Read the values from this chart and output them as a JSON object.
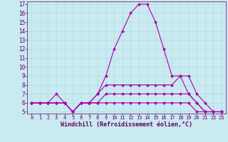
{
  "title": "",
  "xlabel": "Windchill (Refroidissement éolien,°C)",
  "ylabel": "",
  "bg_color": "#c8eaf0",
  "line_color": "#aa00aa",
  "grid_color": "#b0d8df",
  "text_color": "#660066",
  "xlim": [
    -0.5,
    23.5
  ],
  "ylim": [
    4.8,
    17.3
  ],
  "xticks": [
    0,
    1,
    2,
    3,
    4,
    5,
    6,
    7,
    8,
    9,
    10,
    11,
    12,
    13,
    14,
    15,
    16,
    17,
    18,
    19,
    20,
    21,
    22,
    23
  ],
  "yticks": [
    5,
    6,
    7,
    8,
    9,
    10,
    11,
    12,
    13,
    14,
    15,
    16,
    17
  ],
  "series": [
    {
      "x": [
        0,
        1,
        2,
        3,
        4,
        5,
        6,
        7,
        8,
        9,
        10,
        11,
        12,
        13,
        14,
        15,
        16,
        17,
        18,
        19,
        20,
        21,
        22,
        23
      ],
      "y": [
        6,
        6,
        6,
        7,
        6,
        5,
        6,
        6,
        7,
        9,
        12,
        14,
        16,
        17,
        17,
        15,
        12,
        9,
        9,
        7,
        6,
        5,
        5,
        5
      ]
    },
    {
      "x": [
        0,
        1,
        2,
        3,
        4,
        5,
        6,
        7,
        8,
        9,
        10,
        11,
        12,
        13,
        14,
        15,
        16,
        17,
        18,
        19,
        20,
        21,
        22,
        23
      ],
      "y": [
        6,
        6,
        6,
        6,
        6,
        5,
        6,
        6,
        7,
        8,
        8,
        8,
        8,
        8,
        8,
        8,
        8,
        8,
        9,
        9,
        7,
        6,
        5,
        5
      ]
    },
    {
      "x": [
        0,
        1,
        2,
        3,
        4,
        5,
        6,
        7,
        8,
        9,
        10,
        11,
        12,
        13,
        14,
        15,
        16,
        17,
        18,
        19,
        20,
        21,
        22,
        23
      ],
      "y": [
        6,
        6,
        6,
        6,
        6,
        5,
        6,
        6,
        6,
        7,
        7,
        7,
        7,
        7,
        7,
        7,
        7,
        7,
        7,
        7,
        6,
        5,
        5,
        5
      ]
    },
    {
      "x": [
        0,
        1,
        2,
        3,
        4,
        5,
        6,
        7,
        8,
        9,
        10,
        11,
        12,
        13,
        14,
        15,
        16,
        17,
        18,
        19,
        20,
        21,
        22,
        23
      ],
      "y": [
        6,
        6,
        6,
        6,
        6,
        5,
        6,
        6,
        6,
        6,
        6,
        6,
        6,
        6,
        6,
        6,
        6,
        6,
        6,
        6,
        5,
        5,
        5,
        5
      ]
    }
  ],
  "fontsize_xlabel": 6,
  "fontsize_xtick": 5,
  "fontsize_ytick": 5.5,
  "marker": "D",
  "marker_size": 1.5,
  "line_width": 0.8
}
